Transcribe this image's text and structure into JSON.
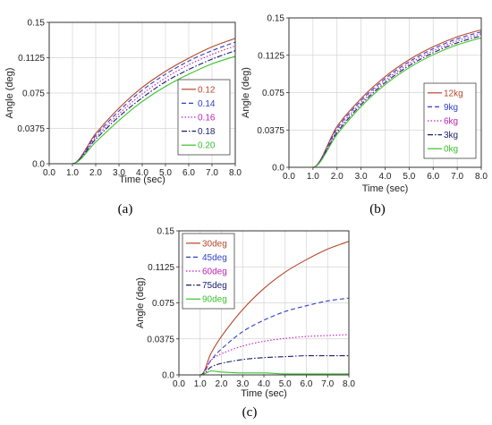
{
  "chart_data": [
    {
      "type": "line",
      "panel_label": "(a)",
      "xlabel": "Time (sec)",
      "ylabel": "Angle (deg)",
      "xlim": [
        0,
        8
      ],
      "ylim": [
        0,
        0.15
      ],
      "xticks": [
        "0.0",
        "1.0",
        "2.0",
        "3.0",
        "4.0",
        "5.0",
        "6.0",
        "7.0",
        "8.0"
      ],
      "yticks": [
        "0.0",
        "0.0375",
        "0.075",
        "0.1125",
        "0.15"
      ],
      "grid": true,
      "legend_position": "bottom-right",
      "series": [
        {
          "name": "0.12",
          "color": "#b5462a",
          "dash": "solid",
          "x": [
            0,
            1,
            2,
            3,
            4,
            5,
            6,
            7,
            8
          ],
          "y": [
            0,
            0,
            0.032,
            0.059,
            0.081,
            0.098,
            0.112,
            0.124,
            0.133
          ]
        },
        {
          "name": "0.14",
          "color": "#2f3fc4",
          "dash": "dashed",
          "x": [
            0,
            1,
            2,
            3,
            4,
            5,
            6,
            7,
            8
          ],
          "y": [
            0,
            0,
            0.03,
            0.056,
            0.078,
            0.095,
            0.109,
            0.12,
            0.129
          ]
        },
        {
          "name": "0.16",
          "color": "#c021b8",
          "dash": "dotted",
          "x": [
            0,
            1,
            2,
            3,
            4,
            5,
            6,
            7,
            8
          ],
          "y": [
            0,
            0,
            0.028,
            0.053,
            0.074,
            0.091,
            0.105,
            0.116,
            0.125
          ]
        },
        {
          "name": "0.18",
          "color": "#1a1f6b",
          "dash": "dashdot",
          "x": [
            0,
            1,
            2,
            3,
            4,
            5,
            6,
            7,
            8
          ],
          "y": [
            0,
            0,
            0.026,
            0.05,
            0.07,
            0.087,
            0.1,
            0.111,
            0.12
          ]
        },
        {
          "name": "0.20",
          "color": "#3bc12c",
          "dash": "solid",
          "x": [
            0,
            1,
            2,
            3,
            4,
            5,
            6,
            7,
            8
          ],
          "y": [
            0,
            0,
            0.023,
            0.046,
            0.066,
            0.082,
            0.095,
            0.106,
            0.114
          ]
        }
      ]
    },
    {
      "type": "line",
      "panel_label": "(b)",
      "xlabel": "Time (sec)",
      "ylabel": "Angle (deg)",
      "xlim": [
        0,
        8
      ],
      "ylim": [
        0,
        0.15
      ],
      "xticks": [
        "0.0",
        "1.0",
        "2.0",
        "3.0",
        "4.0",
        "5.0",
        "6.0",
        "7.0",
        "8.0"
      ],
      "yticks": [
        "0.0",
        "0.0375",
        "0.075",
        "0.1125",
        "0.15"
      ],
      "grid": true,
      "legend_position": "bottom-right",
      "series": [
        {
          "name": "12kg",
          "color": "#b5462a",
          "dash": "solid",
          "x": [
            0,
            1,
            2,
            3,
            4,
            5,
            6,
            7,
            8
          ],
          "y": [
            0,
            0,
            0.041,
            0.069,
            0.091,
            0.108,
            0.121,
            0.131,
            0.138
          ]
        },
        {
          "name": "9kg",
          "color": "#2f3fc4",
          "dash": "dashed",
          "x": [
            0,
            1,
            2,
            3,
            4,
            5,
            6,
            7,
            8
          ],
          "y": [
            0,
            0,
            0.039,
            0.067,
            0.089,
            0.106,
            0.119,
            0.129,
            0.136
          ]
        },
        {
          "name": "6kg",
          "color": "#c021b8",
          "dash": "dotted",
          "x": [
            0,
            1,
            2,
            3,
            4,
            5,
            6,
            7,
            8
          ],
          "y": [
            0,
            0,
            0.037,
            0.065,
            0.087,
            0.104,
            0.117,
            0.127,
            0.134
          ]
        },
        {
          "name": "3kg",
          "color": "#1a1f6b",
          "dash": "dashdot",
          "x": [
            0,
            1,
            2,
            3,
            4,
            5,
            6,
            7,
            8
          ],
          "y": [
            0,
            0,
            0.035,
            0.063,
            0.085,
            0.102,
            0.115,
            0.125,
            0.132
          ]
        },
        {
          "name": "0kg",
          "color": "#3bc12c",
          "dash": "solid",
          "x": [
            0,
            1,
            2,
            3,
            4,
            5,
            6,
            7,
            8
          ],
          "y": [
            0,
            0,
            0.033,
            0.061,
            0.083,
            0.1,
            0.113,
            0.123,
            0.13
          ]
        }
      ]
    },
    {
      "type": "line",
      "panel_label": "(c)",
      "xlabel": "Time (sec)",
      "ylabel": "Angle (deg)",
      "xlim": [
        0,
        8
      ],
      "ylim": [
        0,
        0.15
      ],
      "xticks": [
        "0.0",
        "1.0",
        "2.0",
        "3.0",
        "4.0",
        "5.0",
        "6.0",
        "7.0",
        "8.0"
      ],
      "yticks": [
        "0.0",
        "0.0375",
        "0.075",
        "0.1125",
        "0.15"
      ],
      "grid": true,
      "legend_position": "top-left",
      "series": [
        {
          "name": "30deg",
          "color": "#b5462a",
          "dash": "solid",
          "x": [
            0,
            1,
            1.5,
            2,
            3,
            4,
            5,
            6,
            7,
            8
          ],
          "y": [
            0,
            0,
            0.022,
            0.04,
            0.068,
            0.09,
            0.107,
            0.12,
            0.131,
            0.139
          ]
        },
        {
          "name": "45deg",
          "color": "#2f3fc4",
          "dash": "dashed",
          "x": [
            0,
            1,
            1.5,
            2,
            3,
            4,
            5,
            6,
            7,
            8
          ],
          "y": [
            0,
            0,
            0.015,
            0.027,
            0.045,
            0.057,
            0.066,
            0.072,
            0.077,
            0.08
          ]
        },
        {
          "name": "60deg",
          "color": "#c021b8",
          "dash": "dotted",
          "x": [
            0,
            1,
            1.5,
            2,
            3,
            4,
            5,
            6,
            7,
            8
          ],
          "y": [
            0,
            0,
            0.015,
            0.022,
            0.03,
            0.035,
            0.038,
            0.04,
            0.041,
            0.042
          ]
        },
        {
          "name": "75deg",
          "color": "#1a1f6b",
          "dash": "dashdot",
          "x": [
            0,
            1,
            1.5,
            2,
            3,
            4,
            5,
            6,
            7,
            8
          ],
          "y": [
            0,
            0,
            0.008,
            0.012,
            0.016,
            0.018,
            0.019,
            0.02,
            0.02,
            0.02
          ]
        },
        {
          "name": "90deg",
          "color": "#3bc12c",
          "dash": "solid",
          "x": [
            0,
            1,
            1.5,
            2,
            3,
            4,
            5,
            6,
            7,
            8
          ],
          "y": [
            0,
            0,
            0.004,
            0.003,
            0.002,
            0.002,
            0.001,
            0.001,
            0.001,
            0.001
          ]
        }
      ]
    }
  ]
}
